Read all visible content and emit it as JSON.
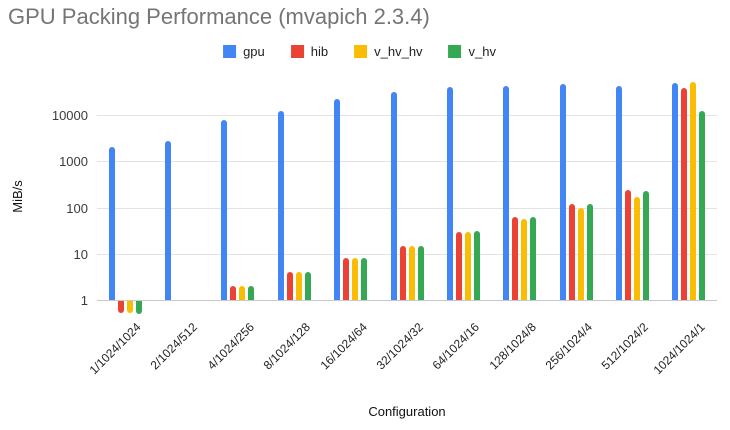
{
  "chart_data": {
    "type": "bar",
    "title": "GPU Packing Performance (mvapich 2.3.4)",
    "xlabel": "Configuration",
    "ylabel": "MiB/s",
    "y_scale": "log",
    "y_ticks": [
      "1",
      "10",
      "100",
      "1000",
      "10000"
    ],
    "ylim": [
      0.5,
      57000
    ],
    "grid": true,
    "legend_position": "top",
    "categories": [
      "1/1024/1024",
      "2/1024/512",
      "4/1024/256",
      "8/1024/128",
      "16/1024/64",
      "32/1024/32",
      "64/1024/16",
      "128/1024/8",
      "256/1024/4",
      "512/1024/2",
      "1024/1024/1"
    ],
    "series": [
      {
        "name": "gpu",
        "color": "#4285F4",
        "values": [
          2100,
          2700,
          8000,
          12500,
          22000,
          32000,
          41000,
          43000,
          47000,
          43000,
          50000
        ]
      },
      {
        "name": "hib",
        "color": "#EA4335",
        "values": [
          0.55,
          null,
          2,
          4,
          8,
          15,
          30,
          62,
          120,
          240,
          39000
        ]
      },
      {
        "name": "v_hv_hv",
        "color": "#FBBC04",
        "values": [
          0.55,
          null,
          2,
          4,
          8,
          15,
          30,
          58,
          100,
          170,
          52000
        ]
      },
      {
        "name": "v_hv",
        "color": "#34A853",
        "values": [
          0.52,
          null,
          2,
          4,
          8,
          15,
          31,
          62,
          120,
          230,
          12500
        ]
      }
    ]
  }
}
